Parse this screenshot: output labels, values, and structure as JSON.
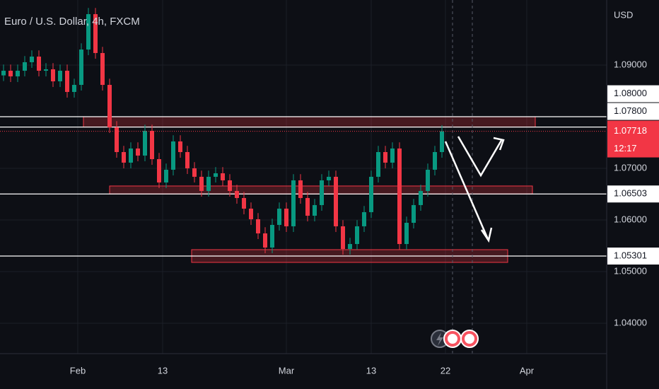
{
  "chart_data": {
    "type": "candlestick",
    "title": "Euro / U.S. Dollar, 4h, FXCM",
    "currency": "USD",
    "open": [
      1.088,
      1.0889,
      1.08781,
      1.0889,
      1.09055,
      1.09164,
      1.0889,
      1.08918,
      1.08685,
      1.0889,
      1.08479,
      1.08616,
      1.09301,
      1.09986,
      1.09233,
      1.08616,
      1.07795,
      1.07315,
      1.0711,
      1.07384,
      1.07247,
      1.07726,
      1.07178,
      1.06726,
      1.06973,
      1.07521,
      1.07315,
      1.07,
      1.06836,
      1.06562,
      1.06836,
      1.06904,
      1.06767,
      1.06562,
      1.06425,
      1.06219,
      1.06014,
      1.0574,
      1.05466,
      1.05904,
      1.06219,
      1.05877,
      1.06767,
      1.06425,
      1.06082,
      1.06288,
      1.06767,
      1.06836,
      1.05877,
      1.05438,
      1.05534,
      1.05877,
      1.06151,
      1.06836,
      1.07315,
      1.0711,
      1.07384,
      1.05534,
      1.05945,
      1.06288,
      1.06562,
      1.06973,
      1.07315
    ],
    "high": [
      1.0901,
      1.0901,
      1.0901,
      1.09175,
      1.09284,
      1.09284,
      1.09038,
      1.09038,
      1.0901,
      1.0901,
      1.08736,
      1.09421,
      1.10106,
      1.10106,
      1.09353,
      1.08736,
      1.07915,
      1.07435,
      1.07504,
      1.07504,
      1.07846,
      1.07846,
      1.07298,
      1.07093,
      1.07641,
      1.07641,
      1.07435,
      1.0712,
      1.06956,
      1.06956,
      1.07024,
      1.07024,
      1.06887,
      1.06682,
      1.06545,
      1.06339,
      1.06134,
      1.0586,
      1.06024,
      1.06339,
      1.06339,
      1.06887,
      1.06887,
      1.06545,
      1.06408,
      1.06887,
      1.06956,
      1.06956,
      1.05997,
      1.05654,
      1.05997,
      1.06271,
      1.06956,
      1.07435,
      1.07435,
      1.07504,
      1.07504,
      1.06065,
      1.06408,
      1.06682,
      1.07093,
      1.07435,
      1.07838
    ],
    "low": [
      1.0869,
      1.08671,
      1.08671,
      1.0878,
      1.08945,
      1.0878,
      1.0878,
      1.08575,
      1.08575,
      1.08369,
      1.08369,
      1.08506,
      1.09191,
      1.09123,
      1.08506,
      1.07685,
      1.07205,
      1.07,
      1.07,
      1.07137,
      1.07137,
      1.07068,
      1.06616,
      1.06616,
      1.06863,
      1.07205,
      1.0689,
      1.06726,
      1.06452,
      1.06452,
      1.06726,
      1.06657,
      1.06452,
      1.06315,
      1.06109,
      1.05904,
      1.0563,
      1.05356,
      1.05356,
      1.05794,
      1.05767,
      1.05767,
      1.06315,
      1.05972,
      1.05972,
      1.06178,
      1.06657,
      1.05767,
      1.05328,
      1.05328,
      1.05424,
      1.05767,
      1.06041,
      1.06726,
      1.07,
      1.07,
      1.05424,
      1.05424,
      1.05835,
      1.06178,
      1.06452,
      1.06863,
      1.07205
    ],
    "close": [
      1.0889,
      1.08781,
      1.0889,
      1.09055,
      1.09164,
      1.0889,
      1.08918,
      1.08685,
      1.0889,
      1.08479,
      1.08616,
      1.09301,
      1.09986,
      1.09233,
      1.08616,
      1.07795,
      1.07315,
      1.0711,
      1.07384,
      1.07247,
      1.07726,
      1.07178,
      1.06726,
      1.06973,
      1.07521,
      1.07315,
      1.07,
      1.06836,
      1.06562,
      1.06836,
      1.06904,
      1.06767,
      1.06562,
      1.06425,
      1.06219,
      1.06014,
      1.0574,
      1.05466,
      1.05904,
      1.06219,
      1.05877,
      1.06767,
      1.06425,
      1.06082,
      1.06288,
      1.06767,
      1.06836,
      1.05877,
      1.05438,
      1.05534,
      1.05877,
      1.06151,
      1.06836,
      1.07315,
      1.0711,
      1.07384,
      1.05534,
      1.05945,
      1.06288,
      1.06562,
      1.06973,
      1.07315,
      1.07718
    ],
    "up_color": "#089981",
    "down_color": "#f23645",
    "ylim": [
      1.03411,
      1.1026
    ],
    "yticks": [
      {
        "value": 1.04,
        "label": "1.04000"
      },
      {
        "value": 1.05,
        "label": "1.05000"
      },
      {
        "value": 1.06,
        "label": "1.06000"
      },
      {
        "value": 1.07,
        "label": "1.07000"
      },
      {
        "value": 1.09,
        "label": "1.09000"
      }
    ],
    "xtick_labels": [
      "Feb",
      "13",
      "Mar",
      "13",
      "22",
      "Apr"
    ],
    "levels": [
      {
        "value": 1.08,
        "label": "1.08000"
      },
      {
        "value": 1.078,
        "label": "1.07800"
      },
      {
        "value": 1.06503,
        "label": "1.06503"
      },
      {
        "value": 1.05301,
        "label": "1.05301"
      }
    ],
    "zones": [
      {
        "top": 1.08,
        "bottom": 1.078
      },
      {
        "top": 1.06658,
        "bottom": 1.06503
      },
      {
        "top": 1.05425,
        "bottom": 1.05178
      }
    ],
    "last_price": {
      "value": 1.07718,
      "label": "1.07718"
    },
    "countdown": "12:17",
    "grid": true
  }
}
